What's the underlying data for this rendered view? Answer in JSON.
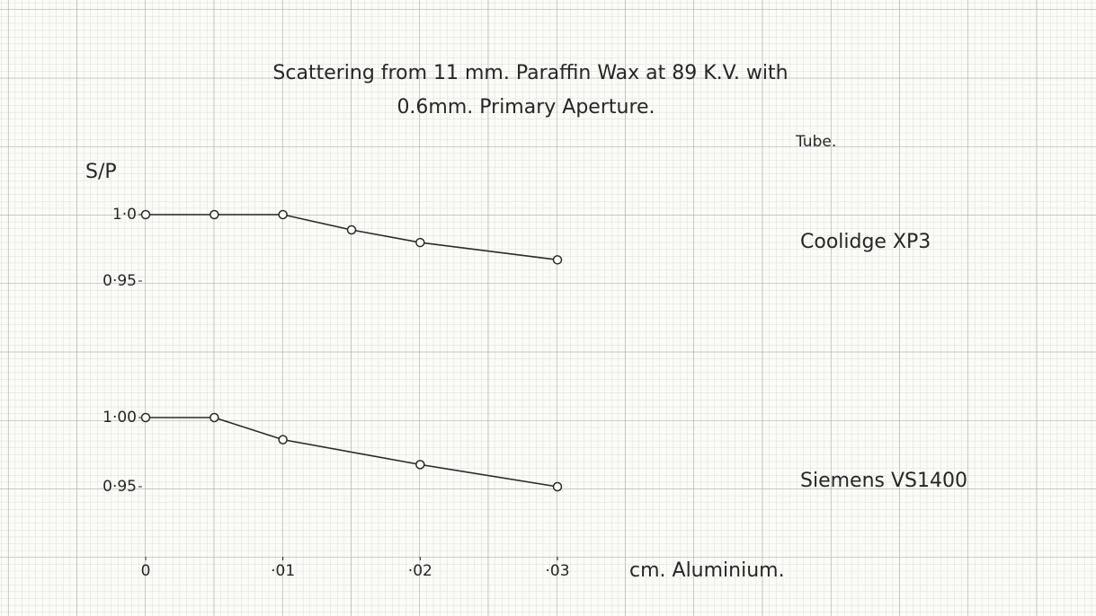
{
  "chart_data": [
    {
      "type": "line",
      "title": "Scattering from 11 mm. Paraffin Wax at 89 K.V. with",
      "subtitle": "0.6mm. Primary Aperture.",
      "ylabel": "S/P",
      "legend_title": "Tube.",
      "x": [
        0,
        0.005,
        0.01,
        0.015,
        0.02,
        0.03
      ],
      "xlim": [
        0,
        0.03
      ],
      "ylim": [
        0.95,
        1.0
      ],
      "yticks": [
        {
          "value": 1.0,
          "label": "1·0"
        },
        {
          "value": 0.95,
          "label": "0·95"
        }
      ],
      "series": [
        {
          "name": "Coolidge XP3",
          "color": "#2a2a2a",
          "values": [
            1.0,
            1.0,
            1.0,
            0.9885,
            0.979,
            0.966
          ]
        }
      ]
    },
    {
      "type": "line",
      "xlabel": "cm. Aluminium.",
      "x": [
        0,
        0.005,
        0.01,
        0.02,
        0.03
      ],
      "xlim": [
        0,
        0.03
      ],
      "xticks": [
        0,
        {
          "value": 0.01,
          "label": "·01"
        },
        {
          "value": 0.02,
          "label": "·02"
        },
        {
          "value": 0.03,
          "label": "·03"
        }
      ],
      "ylim": [
        0.95,
        1.0
      ],
      "yticks": [
        {
          "value": 1.0,
          "label": "1·00"
        },
        {
          "value": 0.95,
          "label": "0·95"
        }
      ],
      "series": [
        {
          "name": "Siemens VS1400",
          "color": "#2a2a2a",
          "values": [
            1.0,
            1.0,
            0.984,
            0.966,
            0.95
          ]
        }
      ]
    }
  ]
}
